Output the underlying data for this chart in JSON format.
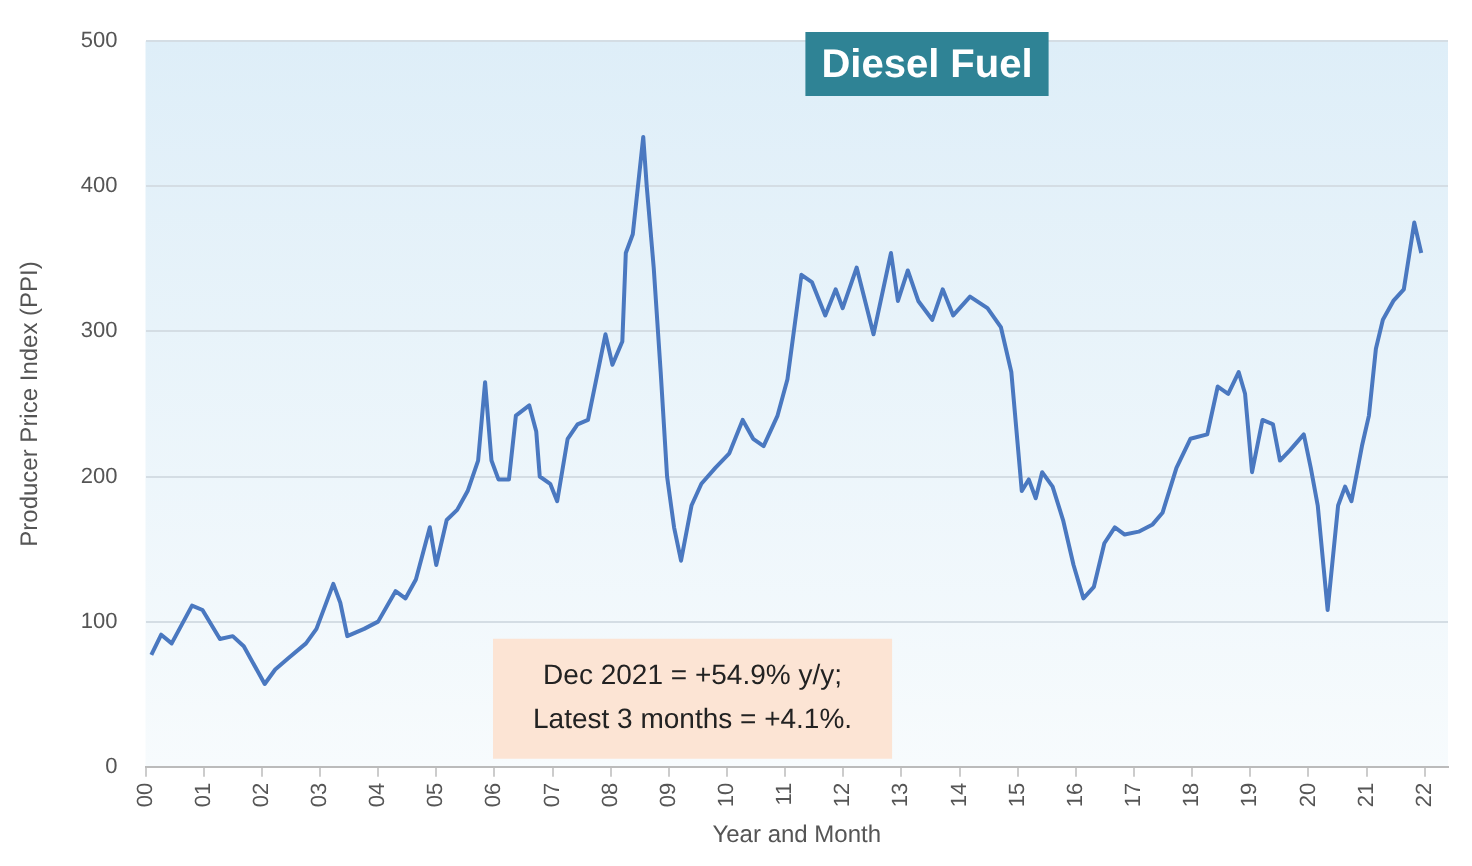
{
  "chart_data": {
    "type": "line",
    "title": "Diesel Fuel",
    "xlabel": "Year and Month",
    "ylabel": "Producer Price Index (PPI)",
    "annotations": [
      "Dec 2021 = +54.9% y/y;",
      "Latest 3 months = +4.1%."
    ],
    "xlim": [
      2000,
      2022.4
    ],
    "ylim": [
      0,
      500
    ],
    "yticks": [
      0,
      100,
      200,
      300,
      400,
      500
    ],
    "xticks": [
      {
        "value": 2000,
        "label": "00"
      },
      {
        "value": 2001,
        "label": "01"
      },
      {
        "value": 2002,
        "label": "02"
      },
      {
        "value": 2003,
        "label": "03"
      },
      {
        "value": 2004,
        "label": "04"
      },
      {
        "value": 2005,
        "label": "05"
      },
      {
        "value": 2006,
        "label": "06"
      },
      {
        "value": 2007,
        "label": "07"
      },
      {
        "value": 2008,
        "label": "08"
      },
      {
        "value": 2009,
        "label": "09"
      },
      {
        "value": 2010,
        "label": "10"
      },
      {
        "value": 2011,
        "label": "11"
      },
      {
        "value": 2012,
        "label": "12"
      },
      {
        "value": 2013,
        "label": "13"
      },
      {
        "value": 2014,
        "label": "14"
      },
      {
        "value": 2015,
        "label": "15"
      },
      {
        "value": 2016,
        "label": "16"
      },
      {
        "value": 2017,
        "label": "17"
      },
      {
        "value": 2018,
        "label": "18"
      },
      {
        "value": 2019,
        "label": "19"
      },
      {
        "value": 2020,
        "label": "20"
      },
      {
        "value": 2021,
        "label": "21"
      },
      {
        "value": 2022,
        "label": "22"
      }
    ],
    "grid": "y",
    "legend": false,
    "marker": "none",
    "line_style": "solid",
    "x": [
      2000.1,
      2000.27,
      2000.45,
      2000.8,
      2000.98,
      2001.28,
      2001.5,
      2001.69,
      2002.05,
      2002.23,
      2002.46,
      2002.76,
      2002.94,
      2003.23,
      2003.35,
      2003.47,
      2003.76,
      2004.0,
      2004.3,
      2004.47,
      2004.65,
      2004.89,
      2005.0,
      2005.18,
      2005.36,
      2005.54,
      2005.72,
      2005.84,
      2005.95,
      2006.07,
      2006.25,
      2006.37,
      2006.6,
      2006.72,
      2006.78,
      2006.96,
      2007.08,
      2007.26,
      2007.43,
      2007.61,
      2007.91,
      2008.03,
      2008.2,
      2008.26,
      2008.38,
      2008.56,
      2008.62,
      2008.74,
      2008.86,
      2008.97,
      2009.09,
      2009.21,
      2009.39,
      2009.56,
      2009.8,
      2010.04,
      2010.27,
      2010.45,
      2010.63,
      2010.87,
      2011.04,
      2011.28,
      2011.46,
      2011.69,
      2011.87,
      2011.99,
      2012.23,
      2012.52,
      2012.82,
      2012.94,
      2013.11,
      2013.29,
      2013.53,
      2013.71,
      2013.89,
      2014.18,
      2014.48,
      2014.71,
      2014.89,
      2015.07,
      2015.19,
      2015.31,
      2015.42,
      2015.6,
      2015.78,
      2015.96,
      2016.13,
      2016.31,
      2016.49,
      2016.67,
      2016.84,
      2017.08,
      2017.32,
      2017.49,
      2017.73,
      2017.97,
      2018.26,
      2018.44,
      2018.62,
      2018.8,
      2018.91,
      2019.03,
      2019.21,
      2019.39,
      2019.51,
      2019.68,
      2019.92,
      2020.04,
      2020.16,
      2020.33,
      2020.51,
      2020.63,
      2020.74,
      2020.92,
      2021.04,
      2021.16,
      2021.28,
      2021.46,
      2021.64,
      2021.82,
      2021.94
    ],
    "series": [
      {
        "color": "#4a78c0",
        "values": [
          77,
          91,
          85,
          111,
          108,
          88,
          90,
          83,
          57,
          67,
          75,
          85,
          95,
          126,
          113,
          90,
          95,
          100,
          121,
          116,
          129,
          165,
          139,
          170,
          177,
          190,
          211,
          265,
          211,
          198,
          198,
          242,
          249,
          231,
          200,
          195,
          183,
          226,
          236,
          239,
          298,
          277,
          293,
          354,
          367,
          434,
          400,
          344,
          272,
          200,
          165,
          142,
          180,
          195,
          206,
          216,
          239,
          226,
          221,
          242,
          267,
          339,
          334,
          311,
          329,
          316,
          344,
          298,
          354,
          321,
          342,
          321,
          308,
          329,
          311,
          324,
          316,
          303,
          272,
          190,
          198,
          185,
          203,
          193,
          170,
          139,
          116,
          124,
          154,
          165,
          160,
          162,
          167,
          175,
          206,
          226,
          229,
          262,
          257,
          272,
          257,
          203,
          239,
          236,
          211,
          218,
          229,
          206,
          180,
          108,
          180,
          193,
          183,
          221,
          242,
          288,
          308,
          321,
          329,
          375,
          354
        ]
      }
    ]
  }
}
